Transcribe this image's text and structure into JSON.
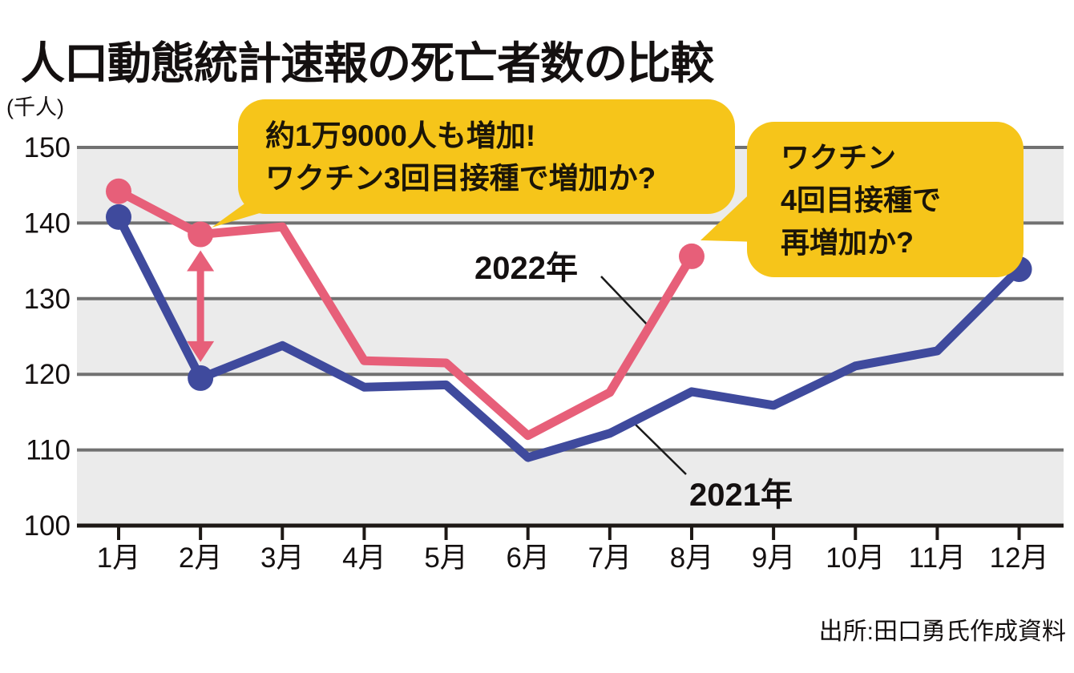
{
  "title": "人口動態統計速報の死亡者数の比較",
  "y_unit_label": "(千人)",
  "source": "出所:田口勇氏作成資料",
  "colors": {
    "series_2021": "#3f4a9d",
    "series_2022": "#e75f79",
    "bubble": "#f6c51a",
    "band": "#ebebeb",
    "gridline": "#717171",
    "axis": "#1d1815",
    "connector": "#1a1a1a"
  },
  "chart_data": {
    "type": "line",
    "title": "人口動態統計速報の死亡者数の比較",
    "ylabel": "(千人)",
    "categories": [
      "1月",
      "2月",
      "3月",
      "4月",
      "5月",
      "6月",
      "7月",
      "8月",
      "9月",
      "10月",
      "11月",
      "12月"
    ],
    "ylim": [
      100,
      150
    ],
    "yticks": [
      150,
      140,
      130,
      120,
      110,
      100
    ],
    "shaded_bands": [
      [
        140,
        150
      ],
      [
        120,
        130
      ],
      [
        100,
        110
      ]
    ],
    "grid": "horizontal",
    "legend_position": "inline-labels",
    "series": [
      {
        "name": "2021年",
        "color": "#3f4a9d",
        "values": [
          140.8,
          119.5,
          123.8,
          118.3,
          118.6,
          109.0,
          112.2,
          117.7,
          115.9,
          121.1,
          123.1,
          133.9
        ],
        "marker_months": [
          1,
          2,
          12
        ]
      },
      {
        "name": "2022年",
        "color": "#e75f79",
        "values": [
          144.2,
          138.5,
          139.5,
          121.8,
          121.5,
          111.9,
          117.6,
          135.6
        ],
        "marker_months": [
          1,
          2,
          8
        ]
      }
    ]
  },
  "annotations": {
    "bubble1": {
      "lines": [
        "約1万9000人も増加!",
        "ワクチン3回目接種で増加か?"
      ]
    },
    "bubble2": {
      "lines": [
        "ワクチン",
        "4回目接種で",
        "再増加か?"
      ]
    },
    "gap_arrow": {
      "month": 2,
      "between": [
        "2022年",
        "2021年"
      ],
      "meaning": "約1万9000人の差"
    }
  }
}
